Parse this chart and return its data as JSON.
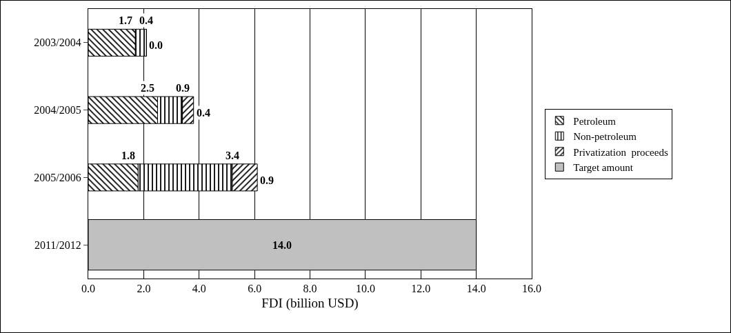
{
  "chart_data": {
    "type": "bar",
    "orientation": "horizontal",
    "stacked": true,
    "xlabel": "FDI (billion USD)",
    "categories": [
      "2003/2004",
      "2004/2005",
      "2005/2006",
      "2011/2012"
    ],
    "series": [
      {
        "name": "Petroleum",
        "color": "#000000",
        "values": [
          1.7,
          2.5,
          1.8,
          null
        ],
        "value_labels": [
          "1.7",
          "2.5",
          "1.8",
          null
        ]
      },
      {
        "name": "Non-petroleum",
        "color": "#000000",
        "values": [
          0.4,
          0.9,
          3.4,
          null
        ],
        "value_labels": [
          "0.4",
          "0.9",
          "3.4",
          null
        ]
      },
      {
        "name": "Privatization  proceeds",
        "color": "#000000",
        "values": [
          0.0,
          0.4,
          0.9,
          null
        ],
        "value_labels": [
          "0.0",
          "0.4",
          "0.9",
          null
        ]
      },
      {
        "name": "Target amount",
        "color": "#c0c0c0",
        "values": [
          null,
          null,
          null,
          14.0
        ],
        "value_labels": [
          null,
          null,
          null,
          "14.0"
        ]
      }
    ],
    "xlim": [
      0,
      16
    ],
    "xticks": [
      {
        "value": 0,
        "label": "0.0"
      },
      {
        "value": 2,
        "label": "2.0"
      },
      {
        "value": 4,
        "label": "4.0"
      },
      {
        "value": 6,
        "label": "6.0"
      },
      {
        "value": 8,
        "label": "8.0"
      },
      {
        "value": 10,
        "label": "10.0"
      },
      {
        "value": 12,
        "label": "12.0"
      },
      {
        "value": 14,
        "label": "14.0"
      },
      {
        "value": 16,
        "label": "16.0"
      }
    ],
    "grid": "x",
    "legend": "right"
  }
}
